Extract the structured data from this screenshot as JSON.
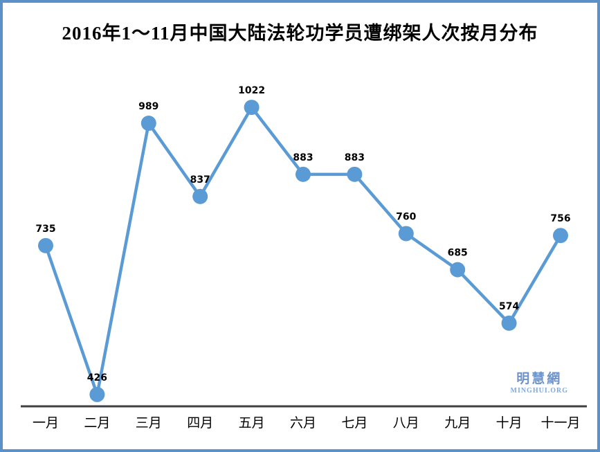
{
  "title": "2016年1～11月中国大陆法轮功学员遭绑架人次按月分布",
  "watermark": {
    "cjk": "明慧網",
    "latin": "MINGHUI.ORG"
  },
  "colors": {
    "line": "#5b9bd5",
    "marker": "#5b9bd5",
    "axis_line": "#3f3f3f",
    "data_label": "#000000",
    "month_label": "#000000",
    "frame_border": "#5b91c8",
    "watermark_cjk": "#6e93c9",
    "watermark_latin": "#83a8d9"
  },
  "chart_data": {
    "type": "line",
    "title": "2016年1～11月中国大陆法轮功学员遭绑架人次按月分布",
    "categories": [
      "一月",
      "二月",
      "三月",
      "四月",
      "五月",
      "六月",
      "七月",
      "八月",
      "九月",
      "十月",
      "十一月"
    ],
    "values": [
      735,
      426,
      989,
      837,
      1022,
      883,
      883,
      760,
      685,
      574,
      756
    ],
    "series": [
      {
        "name": "遭绑架人次",
        "values": [
          735,
          426,
          989,
          837,
          1022,
          883,
          883,
          760,
          685,
          574,
          756
        ]
      }
    ],
    "xlabel": "",
    "ylabel": "",
    "ylim": [
      400,
      1100
    ],
    "grid": false,
    "legend": false,
    "data_labels": true,
    "marker": "circle"
  }
}
